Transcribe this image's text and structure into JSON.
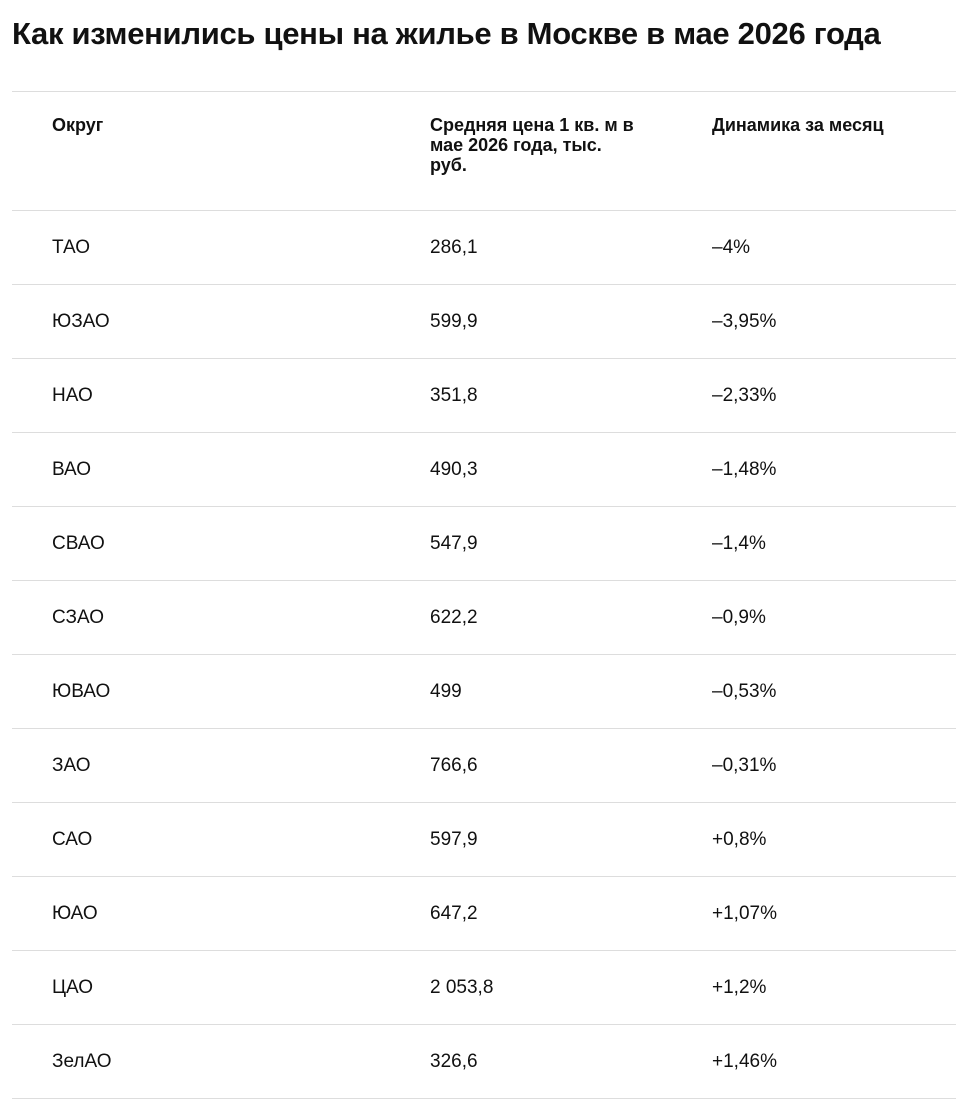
{
  "header": {
    "title": "Как изменились цены на жилье в Москве в мае 2026 года"
  },
  "table": {
    "columns": [
      "Округ",
      "Средняя цена 1 кв. м в мае 2026 года, тыс. руб.",
      "Динамика за месяц"
    ],
    "rows": [
      [
        "ТАО",
        "286,1",
        "–4%"
      ],
      [
        "ЮЗАО",
        "599,9",
        "–3,95%"
      ],
      [
        "НАО",
        "351,8",
        "–2,33%"
      ],
      [
        "ВАО",
        "490,3",
        "–1,48%"
      ],
      [
        "СВАО",
        "547,9",
        "–1,4%"
      ],
      [
        "СЗАО",
        "622,2",
        "–0,9%"
      ],
      [
        "ЮВАО",
        "499",
        "–0,53%"
      ],
      [
        "ЗАО",
        "766,6",
        "–0,31%"
      ],
      [
        "САО",
        "597,9",
        "+0,8%"
      ],
      [
        "ЮАО",
        "647,2",
        "+1,07%"
      ],
      [
        "ЦАО",
        "2 053,8",
        "+1,2%"
      ],
      [
        "ЗелАО",
        "326,6",
        "+1,46%"
      ]
    ]
  }
}
